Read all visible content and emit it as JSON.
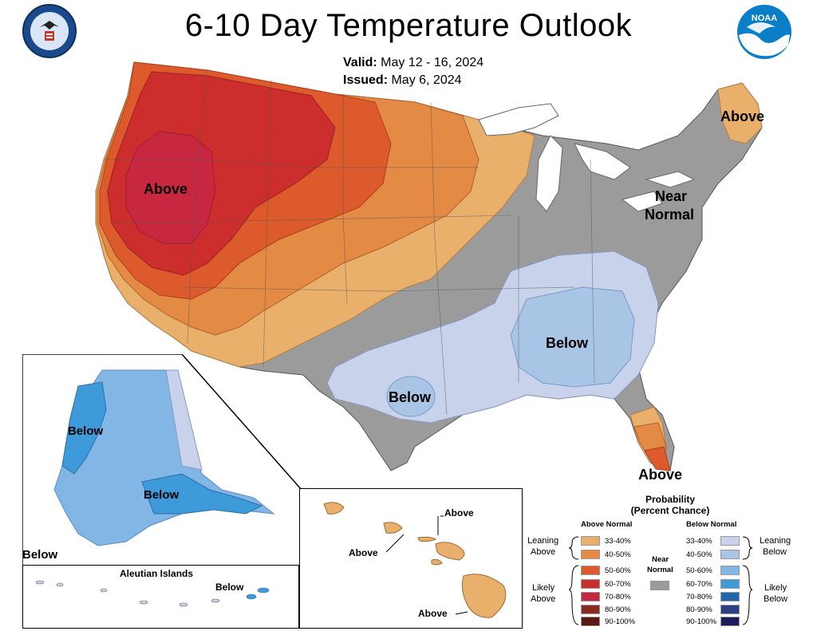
{
  "header": {
    "title": "6-10 Day Temperature Outlook",
    "valid_label": "Valid:",
    "valid_value": "May 12 - 16, 2024",
    "issued_label": "Issued:",
    "issued_value": "May 6, 2024"
  },
  "logos": {
    "left": "commerce-seal",
    "right_text": "NOAA"
  },
  "map_labels": {
    "west_above": "Above",
    "maine_above": "Above",
    "near_normal_1": "Near",
    "near_normal_2": "Normal",
    "southeast_below": "Below",
    "texas_below": "Below",
    "florida_above": "Above",
    "alaska_below_west": "Below",
    "alaska_below_south": "Below",
    "alaska_below_corner": "Below",
    "aleutian_title": "Aleutian Islands",
    "aleutian_below": "Below",
    "hawaii_above_1": "Above",
    "hawaii_above_2": "Above",
    "hawaii_above_3": "Above"
  },
  "legend": {
    "title_1": "Probability",
    "title_2": "(Percent Chance)",
    "above_normal": "Above Normal",
    "below_normal": "Below Normal",
    "near_normal_1": "Near",
    "near_normal_2": "Normal",
    "leaning_above_1": "Leaning",
    "leaning_above_2": "Above",
    "likely_above_1": "Likely",
    "likely_above_2": "Above",
    "leaning_below_1": "Leaning",
    "leaning_below_2": "Below",
    "likely_below_1": "Likely",
    "likely_below_2": "Below",
    "ranges": [
      "33-40%",
      "40-50%",
      "50-60%",
      "60-70%",
      "70-80%",
      "80-90%",
      "90-100%"
    ],
    "above_colors": [
      "#e8b06b",
      "#e38a45",
      "#dc5a2c",
      "#cc2e2e",
      "#c7283f",
      "#8b2a22",
      "#5a1a12"
    ],
    "below_colors": [
      "#c8d2ea",
      "#a9c5e6",
      "#82b6e5",
      "#3f9ad9",
      "#1f66ad",
      "#2a3f86",
      "#1c1c56"
    ],
    "near_color": "#9b9b9b"
  }
}
